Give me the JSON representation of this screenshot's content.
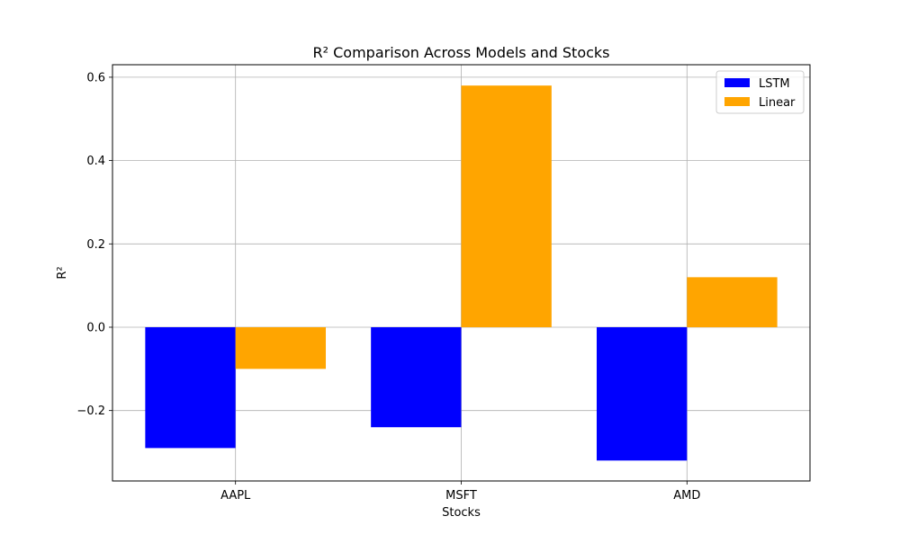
{
  "chart_data": {
    "type": "bar",
    "title": "R² Comparison Across Models and Stocks",
    "xlabel": "Stocks",
    "ylabel": "R²",
    "categories": [
      "AAPL",
      "MSFT",
      "AMD"
    ],
    "series": [
      {
        "name": "LSTM",
        "color": "#0000ff",
        "values": [
          -0.29,
          -0.24,
          -0.32
        ]
      },
      {
        "name": "Linear",
        "color": "#ffa500",
        "values": [
          -0.1,
          0.58,
          0.12
        ]
      }
    ],
    "ylim": [
      -0.369,
      0.63
    ],
    "yticks": [
      -0.2,
      0.0,
      0.2,
      0.4,
      0.6
    ],
    "ytick_labels": [
      "−0.2",
      "0.0",
      "0.2",
      "0.4",
      "0.6"
    ],
    "grid": true,
    "legend_position": "top-right"
  }
}
